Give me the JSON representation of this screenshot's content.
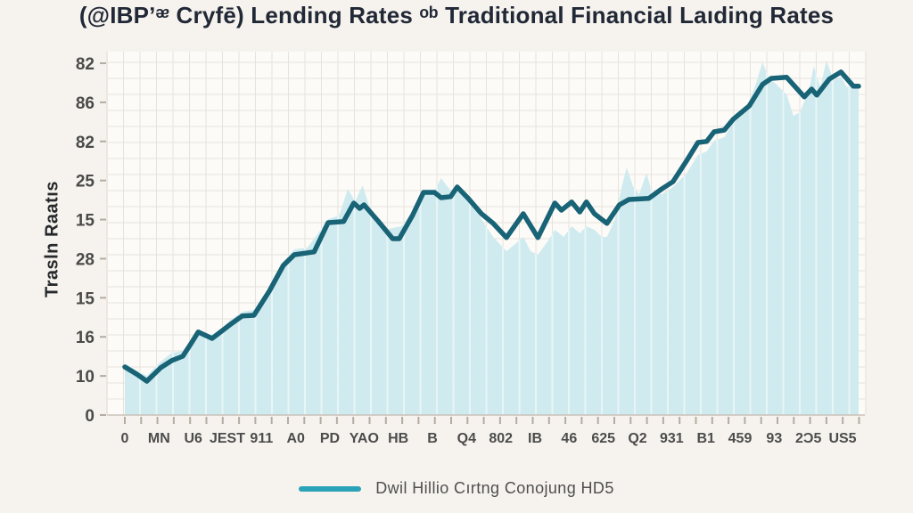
{
  "title": "(@IBPʼᵆ Cryfē) Lending Rates ᵒᵇ Traditional Financial Laıding Rates",
  "y_axis": {
    "label": "Trasln Raatıs"
  },
  "legend": {
    "label": "Dwil Hillio Cırtng Conojung HD5"
  },
  "colors": {
    "line": "#186376",
    "area": "#cdeaee",
    "stripe": "rgba(255,255,255,0.5)",
    "grid": "#e8e2db",
    "plot_bg": "#fcfbf8",
    "background": "#f6f3ee",
    "spine": "#c9c2b8",
    "tick": "#b3aca2",
    "legend_line": "#2aa3b8",
    "title_text": "#212836",
    "axis_text": "#4a4a4a"
  },
  "chart_data": {
    "type": "area",
    "title": "(@IBPʼᵆ Cryfē) Lending Rates ᵒᵇ Traditional Financial Laıding Rates",
    "ylabel": "Trasln Raatıs",
    "xlabel": "",
    "grid": true,
    "legend_position": "bottom",
    "ylim": [
      0,
      100
    ],
    "y_tick_labels": [
      "82",
      "86",
      "82",
      "25",
      "15",
      "28",
      "15",
      "16",
      "10",
      "0"
    ],
    "x_tick_labels": [
      "0",
      "MN",
      "U6",
      "JEST",
      "911",
      "A0",
      "PD",
      "YAO",
      "HB",
      "B",
      "Q4",
      "802",
      "IB",
      "46",
      "625",
      "Q2",
      "931",
      "B1",
      "459",
      "93",
      "2Ɔ5",
      "US5"
    ],
    "note": "x values are fractions 0-1 of axis width; y values are percent of plot height (axis tick text is non-numeric)",
    "series": [
      {
        "name": "area-fill",
        "points": [
          [
            0,
            14.5
          ],
          [
            0.016,
            12.5
          ],
          [
            0.03,
            11
          ],
          [
            0.049,
            15
          ],
          [
            0.064,
            17.5
          ],
          [
            0.079,
            18
          ],
          [
            0.09,
            21
          ],
          [
            0.1,
            24
          ],
          [
            0.109,
            23
          ],
          [
            0.119,
            22.5
          ],
          [
            0.134,
            24.5
          ],
          [
            0.143,
            26.5
          ],
          [
            0.16,
            29
          ],
          [
            0.176,
            29.5
          ],
          [
            0.197,
            36
          ],
          [
            0.216,
            43
          ],
          [
            0.231,
            46.5
          ],
          [
            0.249,
            47
          ],
          [
            0.267,
            52
          ],
          [
            0.277,
            55
          ],
          [
            0.292,
            56
          ],
          [
            0.304,
            63.5
          ],
          [
            0.314,
            60
          ],
          [
            0.324,
            64.5
          ],
          [
            0.334,
            58
          ],
          [
            0.345,
            55
          ],
          [
            0.355,
            52
          ],
          [
            0.365,
            52.5
          ],
          [
            0.377,
            53
          ],
          [
            0.392,
            57
          ],
          [
            0.407,
            63
          ],
          [
            0.422,
            63
          ],
          [
            0.431,
            66.5
          ],
          [
            0.444,
            63
          ],
          [
            0.453,
            65
          ],
          [
            0.468,
            61
          ],
          [
            0.486,
            55
          ],
          [
            0.502,
            50
          ],
          [
            0.52,
            46
          ],
          [
            0.532,
            48
          ],
          [
            0.543,
            50
          ],
          [
            0.553,
            46
          ],
          [
            0.563,
            45
          ],
          [
            0.577,
            49
          ],
          [
            0.586,
            52
          ],
          [
            0.598,
            50
          ],
          [
            0.609,
            53
          ],
          [
            0.62,
            51
          ],
          [
            0.629,
            53
          ],
          [
            0.64,
            52
          ],
          [
            0.65,
            50
          ],
          [
            0.657,
            50
          ],
          [
            0.668,
            55
          ],
          [
            0.677,
            64
          ],
          [
            0.684,
            69.5
          ],
          [
            0.693,
            64
          ],
          [
            0.701,
            62
          ],
          [
            0.711,
            68
          ],
          [
            0.719,
            62
          ],
          [
            0.732,
            62
          ],
          [
            0.747,
            64
          ],
          [
            0.766,
            68
          ],
          [
            0.781,
            73
          ],
          [
            0.793,
            74
          ],
          [
            0.803,
            77
          ],
          [
            0.817,
            78
          ],
          [
            0.829,
            82
          ],
          [
            0.841,
            84
          ],
          [
            0.851,
            88
          ],
          [
            0.86,
            93
          ],
          [
            0.869,
            99
          ],
          [
            0.877,
            95
          ],
          [
            0.887,
            93
          ],
          [
            0.902,
            90
          ],
          [
            0.911,
            84
          ],
          [
            0.92,
            85
          ],
          [
            0.926,
            88
          ],
          [
            0.933,
            92
          ],
          [
            0.939,
            98
          ],
          [
            0.948,
            92
          ],
          [
            0.956,
            99.5
          ],
          [
            0.966,
            94
          ],
          [
            0.976,
            95
          ],
          [
            0.984,
            92
          ],
          [
            0.993,
            93
          ],
          [
            1,
            93
          ]
        ]
      },
      {
        "name": "Dwil Hillio Cırtng Conojung HD5",
        "points": [
          [
            0,
            13.5
          ],
          [
            0.016,
            11.5
          ],
          [
            0.03,
            9.5
          ],
          [
            0.049,
            13.3
          ],
          [
            0.064,
            15.3
          ],
          [
            0.079,
            16.5
          ],
          [
            0.09,
            20
          ],
          [
            0.1,
            23.3
          ],
          [
            0.119,
            21.5
          ],
          [
            0.143,
            25.3
          ],
          [
            0.16,
            27.8
          ],
          [
            0.176,
            28
          ],
          [
            0.197,
            34.8
          ],
          [
            0.216,
            42
          ],
          [
            0.231,
            45
          ],
          [
            0.258,
            45.8
          ],
          [
            0.277,
            54
          ],
          [
            0.298,
            54.3
          ],
          [
            0.312,
            59.5
          ],
          [
            0.32,
            58
          ],
          [
            0.326,
            59
          ],
          [
            0.345,
            54.5
          ],
          [
            0.365,
            49.5
          ],
          [
            0.374,
            49.5
          ],
          [
            0.392,
            56
          ],
          [
            0.407,
            62.5
          ],
          [
            0.422,
            62.5
          ],
          [
            0.431,
            61
          ],
          [
            0.444,
            61.3
          ],
          [
            0.453,
            64
          ],
          [
            0.468,
            60.8
          ],
          [
            0.486,
            56.5
          ],
          [
            0.502,
            53.8
          ],
          [
            0.52,
            49.8
          ],
          [
            0.543,
            56.5
          ],
          [
            0.563,
            49.8
          ],
          [
            0.586,
            59.5
          ],
          [
            0.595,
            57.5
          ],
          [
            0.609,
            59.8
          ],
          [
            0.62,
            57
          ],
          [
            0.629,
            59.8
          ],
          [
            0.64,
            56.5
          ],
          [
            0.657,
            53.8
          ],
          [
            0.674,
            59
          ],
          [
            0.687,
            60.5
          ],
          [
            0.714,
            60.8
          ],
          [
            0.732,
            63.5
          ],
          [
            0.747,
            65.5
          ],
          [
            0.766,
            71.5
          ],
          [
            0.781,
            76.5
          ],
          [
            0.793,
            76.8
          ],
          [
            0.803,
            79.5
          ],
          [
            0.817,
            80
          ],
          [
            0.829,
            83
          ],
          [
            0.851,
            86.8
          ],
          [
            0.869,
            92.8
          ],
          [
            0.881,
            94.5
          ],
          [
            0.902,
            94.8
          ],
          [
            0.926,
            89.3
          ],
          [
            0.936,
            91.5
          ],
          [
            0.943,
            89.8
          ],
          [
            0.96,
            94.3
          ],
          [
            0.976,
            96.3
          ],
          [
            0.993,
            92.3
          ],
          [
            1,
            92.3
          ]
        ]
      }
    ]
  }
}
